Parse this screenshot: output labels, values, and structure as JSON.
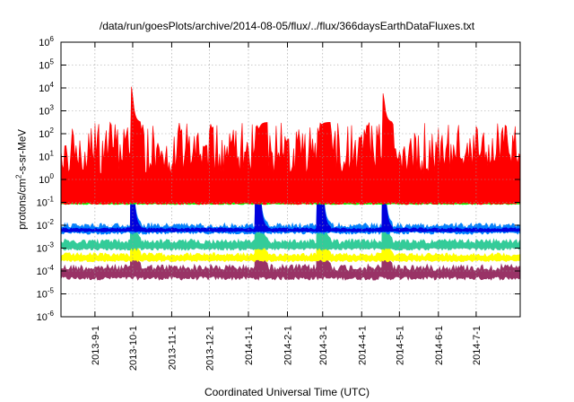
{
  "chart_data": {
    "type": "line",
    "title": "/data/run/goesPlots/archive/2014-08-05/flux/../flux/366daysEarthDataFluxes.txt",
    "xlabel": "Coordinated Universal Time (UTC)",
    "ylabel_parts": [
      "protons/cm",
      "2",
      "-s-sr-MeV"
    ],
    "y_scale": "log",
    "ylim_exponents": [
      -6,
      6
    ],
    "y_tick_base": "10",
    "y_tick_exponents": [
      "-6",
      "-5",
      "-4",
      "-3",
      "-2",
      "-1",
      "0",
      "1",
      "2",
      "3",
      "4",
      "5",
      "6"
    ],
    "x_range": [
      "2013-08-05",
      "2014-08-05"
    ],
    "x_tick_labels": [
      "2013-9-1",
      "2013-10-1",
      "2013-11-1",
      "2013-12-1",
      "2014-1-1",
      "2014-2-1",
      "2014-3-1",
      "2014-4-1",
      "2014-5-1",
      "2014-6-1",
      "2014-7-1"
    ],
    "grid": true,
    "bands": [
      {
        "color": "#993366",
        "low": [
          -4.4,
          -3.7
        ]
      },
      {
        "color": "#ffff00",
        "low": [
          -3.6,
          -3.2
        ]
      },
      {
        "color": "#33cc99",
        "low": [
          -3.1,
          -2.6
        ]
      },
      {
        "color": "#0080ff",
        "low": [
          -2.4,
          -1.9
        ]
      },
      {
        "color": "#0000dd",
        "low": [
          -2.3,
          -2.1
        ]
      },
      {
        "color": "#00ff00",
        "low": [
          -1.1,
          -0.9
        ]
      },
      {
        "color": "#ff0000",
        "low": [
          -1.0,
          2.5
        ]
      }
    ],
    "events": [
      {
        "date": "2013-09-30",
        "peak": 4.1
      },
      {
        "date": "2014-01-07",
        "peak": 2.3
      },
      {
        "date": "2014-01-09",
        "peak": 2.2
      },
      {
        "date": "2014-02-25",
        "peak": 1.8
      },
      {
        "date": "2014-02-28",
        "peak": 2.4
      },
      {
        "date": "2014-04-18",
        "peak": 3.8
      }
    ],
    "colors": {
      "red": "#ff0000",
      "green": "#00ff00",
      "light_blue": "#0080ff",
      "dark_blue": "#0000dd",
      "teal": "#33cc99",
      "yellow": "#ffff00",
      "purple": "#993366"
    }
  }
}
